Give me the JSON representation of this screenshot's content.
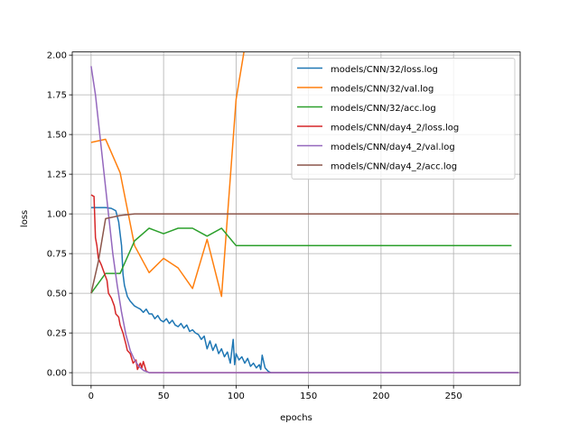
{
  "chart_data": {
    "type": "line",
    "title": "",
    "xlabel": "epochs",
    "ylabel": "loss",
    "xlim": [
      -13,
      296
    ],
    "ylim": [
      -0.08,
      2.02
    ],
    "grid": true,
    "legend_position": "top-right",
    "x_ticks": [
      0,
      50,
      100,
      150,
      200,
      250
    ],
    "y_ticks": [
      0.0,
      0.25,
      0.5,
      0.75,
      1.0,
      1.25,
      1.5,
      1.75,
      2.0
    ],
    "x_tick_labels": [
      "0",
      "50",
      "100",
      "150",
      "200",
      "250"
    ],
    "y_tick_labels": [
      "0.00",
      "0.25",
      "0.50",
      "0.75",
      "1.00",
      "1.25",
      "1.50",
      "1.75",
      "2.00"
    ],
    "series": [
      {
        "name": "models/CNN/32/loss.log",
        "color": "#1f77b4",
        "points": [
          [
            0,
            1.04
          ],
          [
            5,
            1.04
          ],
          [
            10,
            1.04
          ],
          [
            14,
            1.035
          ],
          [
            17,
            1.02
          ],
          [
            19,
            0.95
          ],
          [
            21,
            0.8
          ],
          [
            22,
            0.62
          ],
          [
            23,
            0.55
          ],
          [
            25,
            0.48
          ],
          [
            27,
            0.45
          ],
          [
            30,
            0.42
          ],
          [
            32,
            0.41
          ],
          [
            34,
            0.4
          ],
          [
            36,
            0.38
          ],
          [
            38,
            0.4
          ],
          [
            40,
            0.37
          ],
          [
            42,
            0.37
          ],
          [
            44,
            0.34
          ],
          [
            46,
            0.36
          ],
          [
            48,
            0.33
          ],
          [
            50,
            0.32
          ],
          [
            52,
            0.34
          ],
          [
            54,
            0.31
          ],
          [
            56,
            0.33
          ],
          [
            58,
            0.3
          ],
          [
            60,
            0.29
          ],
          [
            62,
            0.31
          ],
          [
            64,
            0.28
          ],
          [
            66,
            0.3
          ],
          [
            68,
            0.26
          ],
          [
            70,
            0.27
          ],
          [
            72,
            0.25
          ],
          [
            74,
            0.24
          ],
          [
            76,
            0.21
          ],
          [
            78,
            0.23
          ],
          [
            80,
            0.15
          ],
          [
            82,
            0.2
          ],
          [
            84,
            0.14
          ],
          [
            86,
            0.18
          ],
          [
            88,
            0.12
          ],
          [
            90,
            0.15
          ],
          [
            92,
            0.1
          ],
          [
            94,
            0.13
          ],
          [
            96,
            0.06
          ],
          [
            98,
            0.21
          ],
          [
            99,
            0.05
          ],
          [
            100,
            0.12
          ],
          [
            102,
            0.08
          ],
          [
            104,
            0.1
          ],
          [
            106,
            0.06
          ],
          [
            108,
            0.09
          ],
          [
            110,
            0.04
          ],
          [
            112,
            0.06
          ],
          [
            114,
            0.03
          ],
          [
            116,
            0.05
          ],
          [
            117,
            0.02
          ],
          [
            118,
            0.11
          ],
          [
            120,
            0.03
          ],
          [
            122,
            0.01
          ],
          [
            124,
            0.0
          ],
          [
            295,
            0.0
          ]
        ]
      },
      {
        "name": "models/CNN/32/val.log",
        "color": "#ff7f0e",
        "points": [
          [
            0,
            1.45
          ],
          [
            10,
            1.47
          ],
          [
            20,
            1.26
          ],
          [
            30,
            0.8
          ],
          [
            40,
            0.63
          ],
          [
            50,
            0.72
          ],
          [
            60,
            0.66
          ],
          [
            70,
            0.53
          ],
          [
            80,
            0.84
          ],
          [
            90,
            0.48
          ],
          [
            100,
            1.72
          ],
          [
            106,
            2.05
          ]
        ]
      },
      {
        "name": "models/CNN/32/acc.log",
        "color": "#2ca02c",
        "points": [
          [
            0,
            0.5
          ],
          [
            10,
            0.625
          ],
          [
            20,
            0.625
          ],
          [
            30,
            0.83
          ],
          [
            40,
            0.91
          ],
          [
            50,
            0.875
          ],
          [
            60,
            0.91
          ],
          [
            70,
            0.91
          ],
          [
            80,
            0.86
          ],
          [
            90,
            0.91
          ],
          [
            100,
            0.8
          ],
          [
            290,
            0.8
          ]
        ]
      },
      {
        "name": "models/CNN/day4_2/loss.log",
        "color": "#d62728",
        "points": [
          [
            0,
            1.12
          ],
          [
            2,
            1.11
          ],
          [
            3,
            0.85
          ],
          [
            4,
            0.8
          ],
          [
            5,
            0.72
          ],
          [
            7,
            0.68
          ],
          [
            9,
            0.63
          ],
          [
            11,
            0.58
          ],
          [
            12,
            0.5
          ],
          [
            14,
            0.47
          ],
          [
            16,
            0.42
          ],
          [
            17,
            0.37
          ],
          [
            19,
            0.35
          ],
          [
            20,
            0.3
          ],
          [
            22,
            0.25
          ],
          [
            24,
            0.18
          ],
          [
            25,
            0.14
          ],
          [
            27,
            0.12
          ],
          [
            29,
            0.06
          ],
          [
            31,
            0.08
          ],
          [
            32,
            0.02
          ],
          [
            34,
            0.06
          ],
          [
            35,
            0.03
          ],
          [
            36,
            0.07
          ],
          [
            38,
            0.01
          ],
          [
            40,
            0.0
          ],
          [
            295,
            0.0
          ]
        ]
      },
      {
        "name": "models/CNN/day4_2/val.log",
        "color": "#9467bd",
        "points": [
          [
            0,
            1.93
          ],
          [
            3,
            1.75
          ],
          [
            6,
            1.5
          ],
          [
            9,
            1.25
          ],
          [
            12,
            1.0
          ],
          [
            15,
            0.75
          ],
          [
            18,
            0.55
          ],
          [
            21,
            0.38
          ],
          [
            24,
            0.24
          ],
          [
            27,
            0.14
          ],
          [
            30,
            0.08
          ],
          [
            33,
            0.04
          ],
          [
            36,
            0.015
          ],
          [
            40,
            0.0
          ],
          [
            295,
            0.0
          ]
        ]
      },
      {
        "name": "models/CNN/day4_2/acc.log",
        "color": "#8c564b",
        "points": [
          [
            0,
            0.5
          ],
          [
            5,
            0.7
          ],
          [
            10,
            0.97
          ],
          [
            20,
            0.99
          ],
          [
            30,
            1.0
          ],
          [
            295,
            1.0
          ]
        ]
      }
    ]
  }
}
